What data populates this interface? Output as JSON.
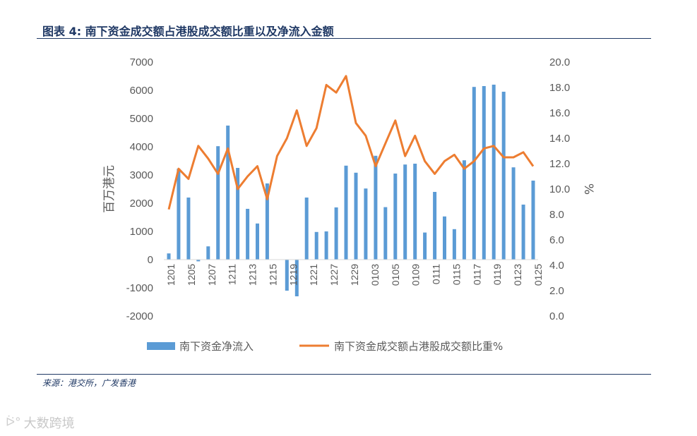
{
  "title": "图表 4: 南下资金成交额占港股成交额比重以及净流入金额",
  "source": "来源：港交所，广发香港",
  "watermark": "大数跨境",
  "chart_data": {
    "type": "bar+line",
    "y_left_label": "百万港元",
    "y_right_label": "%",
    "y_left_ticks": [
      "7000",
      "6000",
      "5000",
      "4000",
      "3000",
      "2000",
      "1000",
      "0",
      "-1000",
      "-2000"
    ],
    "y_right_ticks": [
      "20.0",
      "18.0",
      "16.0",
      "14.0",
      "12.0",
      "10.0",
      "8.0",
      "6.0",
      "4.0",
      "2.0",
      "0.0"
    ],
    "ylim_left": [
      -2000,
      7000
    ],
    "ylim_right": [
      0,
      20
    ],
    "x_tick_labels": [
      "1201",
      "1205",
      "1207",
      "1211",
      "1213",
      "1215",
      "1219",
      "1221",
      "1227",
      "1229",
      "0103",
      "0105",
      "0109",
      "0111",
      "0115",
      "0117",
      "0119",
      "0123",
      "0125"
    ],
    "series": [
      {
        "name": "南下资金净流入",
        "type": "bar",
        "axis": "left",
        "color": "#5B9BD5",
        "values": [
          220,
          3220,
          2200,
          -60,
          470,
          4020,
          4750,
          3250,
          1800,
          1280,
          2700,
          0,
          -1100,
          -1300,
          2200,
          980,
          1000,
          1850,
          3330,
          3080,
          2520,
          3680,
          1860,
          3050,
          3370,
          3400,
          960,
          2400,
          1530,
          1080,
          3520,
          6120,
          6150,
          6200,
          5950,
          3270,
          1950,
          2800
        ]
      },
      {
        "name": "南下资金成交额占港股成交额比重%",
        "type": "line",
        "axis": "right",
        "color": "#ED7D31",
        "values": [
          8.4,
          11.6,
          10.8,
          13.4,
          12.4,
          11.2,
          13.2,
          10.0,
          11.0,
          11.8,
          9.2,
          12.6,
          14.0,
          16.2,
          13.4,
          14.8,
          18.2,
          17.6,
          18.9,
          15.2,
          14.2,
          11.8,
          13.6,
          15.4,
          12.6,
          14.2,
          12.2,
          11.2,
          12.2,
          12.7,
          11.6,
          12.2,
          13.2,
          13.4,
          12.5,
          12.5,
          12.9,
          11.8
        ]
      }
    ],
    "legend_position": "bottom"
  }
}
